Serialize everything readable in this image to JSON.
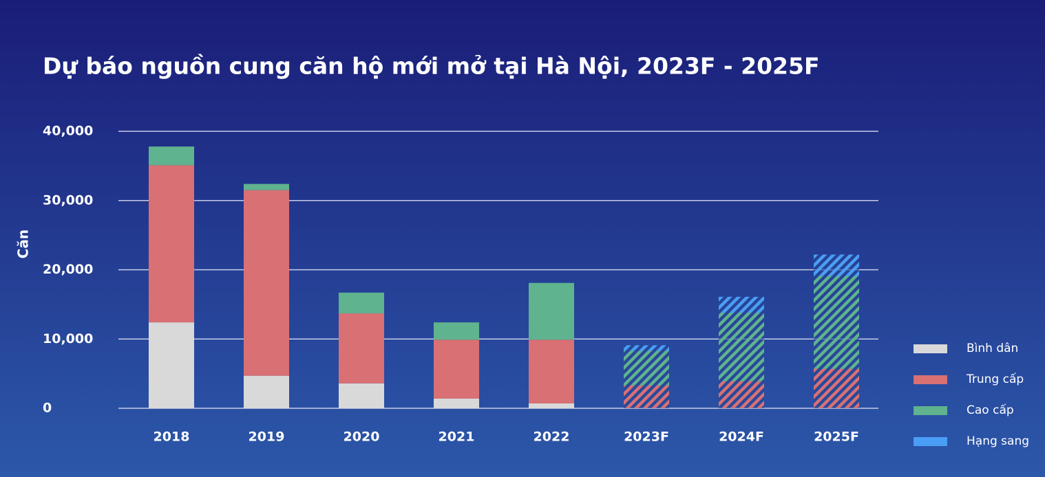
{
  "chart_data": {
    "type": "stacked_bar",
    "title": "Dự báo nguồn cung căn hộ mới mở tại Hà Nội, 2023F - 2025F",
    "y_label": "Căn",
    "categories": [
      "2018",
      "2019",
      "2020",
      "2021",
      "2022",
      "2023F",
      "2024F",
      "2025F"
    ],
    "hatched": [
      false,
      false,
      false,
      false,
      false,
      true,
      true,
      true
    ],
    "series": [
      {
        "name": "Bình dân",
        "color": "#d9d9d9",
        "values": [
          12400,
          4700,
          3600,
          1400,
          700,
          0,
          0,
          0
        ]
      },
      {
        "name": "Trung cấp",
        "color": "#d87074",
        "values": [
          22700,
          26800,
          10100,
          8500,
          9200,
          3300,
          3900,
          5700
        ]
      },
      {
        "name": "Cao cấp",
        "color": "#5fb38e",
        "values": [
          2700,
          900,
          3000,
          2500,
          8200,
          5000,
          9900,
          13400
        ]
      },
      {
        "name": "Hạng sang",
        "color": "#4a9ef5",
        "values": [
          0,
          0,
          0,
          0,
          0,
          800,
          2300,
          3100
        ]
      }
    ],
    "ylim": [
      0,
      40000
    ],
    "yticks": [
      0,
      {
        "value": 10000,
        "label": "10,000"
      },
      {
        "value": 20000,
        "label": "20,000"
      },
      {
        "value": 30000,
        "label": "30,000"
      },
      {
        "value": 40000,
        "label": "40,000"
      }
    ],
    "grid": true,
    "legend": "right"
  }
}
